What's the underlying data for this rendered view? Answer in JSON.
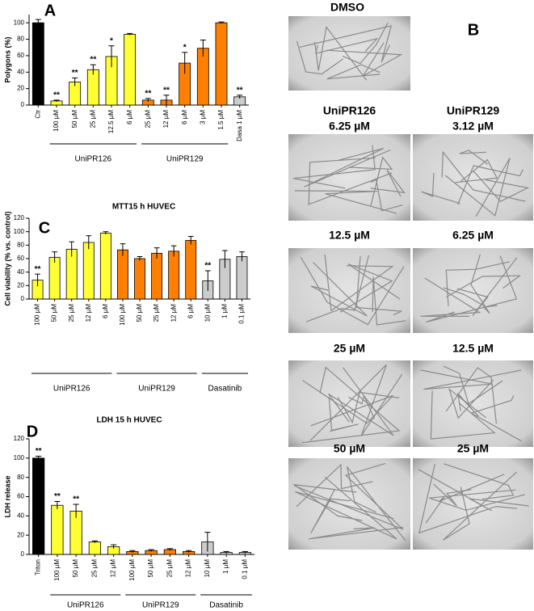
{
  "chart_data": [
    {
      "type": "bar",
      "panel": "A",
      "ylabel": "Polygons (%)",
      "categories": [
        "Ctr",
        "100 µM",
        "50 µM",
        "25 µM",
        "12.5 µM",
        "6 µM",
        "25 µM",
        "12 µM",
        "6 µM",
        "3 µM",
        "1.5 µM",
        "Dasa 1 µM"
      ],
      "group": [
        null,
        "UniPR126",
        "UniPR126",
        "UniPR126",
        "UniPR126",
        "UniPR126",
        "UniPR129",
        "UniPR129",
        "UniPR129",
        "UniPR129",
        "UniPR129",
        null
      ],
      "values": [
        100,
        5,
        28,
        43,
        59,
        86,
        6,
        6,
        51,
        69,
        100,
        10
      ],
      "errors": [
        4,
        1,
        5,
        6,
        13,
        1,
        2,
        6,
        13,
        10,
        1,
        2
      ],
      "significance": [
        null,
        "**",
        "**",
        "**",
        "*",
        null,
        "**",
        "**",
        "*",
        null,
        null,
        "**"
      ],
      "colors": [
        "#000000",
        "#ffff33",
        "#ffff33",
        "#ffff33",
        "#ffff33",
        "#ffff33",
        "#ff8000",
        "#ff8000",
        "#ff8000",
        "#ff8000",
        "#ff8000",
        "#cccccc"
      ],
      "ylim": [
        0,
        110
      ],
      "yticks": [
        0,
        20,
        40,
        60,
        80,
        100
      ],
      "grid": false
    },
    {
      "type": "bar",
      "panel": "C",
      "title": "MTT15 h HUVEC",
      "ylabel": "Cell viability (% vs. control)",
      "categories": [
        "100 µM",
        "50 µM",
        "25 µM",
        "12 µM",
        "6 µM",
        "100 µM",
        "50 µM",
        "25 µM",
        "12 µM",
        "6 µM",
        "10 µM",
        "1 µM",
        "0.1 µM"
      ],
      "group": [
        "UniPR126",
        "UniPR126",
        "UniPR126",
        "UniPR126",
        "UniPR126",
        "UniPR129",
        "UniPR129",
        "UniPR129",
        "UniPR129",
        "UniPR129",
        "Dasatinib",
        "Dasatinib",
        "Dasatinib"
      ],
      "values": [
        28,
        62,
        74,
        84,
        98,
        73,
        60,
        68,
        71,
        87,
        27,
        59,
        63
      ],
      "errors": [
        9,
        8,
        11,
        10,
        2,
        9,
        3,
        8,
        8,
        6,
        15,
        13,
        7
      ],
      "significance": [
        "**",
        null,
        null,
        null,
        null,
        null,
        null,
        null,
        null,
        null,
        "**",
        null,
        null
      ],
      "colors": [
        "#ffff33",
        "#ffff33",
        "#ffff33",
        "#ffff33",
        "#ffff33",
        "#ff8000",
        "#ff8000",
        "#ff8000",
        "#ff8000",
        "#ff8000",
        "#cccccc",
        "#cccccc",
        "#cccccc"
      ],
      "ylim": [
        0,
        120
      ],
      "yticks": [
        0,
        20,
        40,
        60,
        80,
        100,
        120
      ],
      "grid": false
    },
    {
      "type": "bar",
      "panel": "D",
      "title": "LDH 15 h HUVEC",
      "ylabel": "LDH release",
      "categories": [
        "Triton",
        "100 µM",
        "50 µM",
        "25 µM",
        "12 µM",
        "100 µM",
        "50 µM",
        "25 µM",
        "12 µM",
        "10 µM",
        "1 µM",
        "0.1 µM"
      ],
      "group": [
        null,
        "UniPR126",
        "UniPR126",
        "UniPR126",
        "UniPR126",
        "UniPR129",
        "UniPR129",
        "UniPR129",
        "UniPR129",
        "Dasatinib",
        "Dasatinib",
        "Dasatinib"
      ],
      "values": [
        100,
        51,
        45,
        13,
        8,
        3,
        4,
        5,
        3,
        13,
        2,
        2
      ],
      "errors": [
        2,
        4,
        7,
        1,
        2,
        1,
        1,
        1,
        1,
        10,
        1,
        1
      ],
      "significance": [
        "**",
        "**",
        "**",
        null,
        null,
        null,
        null,
        null,
        null,
        null,
        null,
        null
      ],
      "colors": [
        "#000000",
        "#ffff33",
        "#ffff33",
        "#ffff33",
        "#ffff33",
        "#ff8000",
        "#ff8000",
        "#ff8000",
        "#ff8000",
        "#cccccc",
        "#cccccc",
        "#cccccc"
      ],
      "ylim": [
        0,
        120
      ],
      "yticks": [
        0,
        20,
        40,
        60,
        80,
        100,
        120
      ],
      "grid": false
    }
  ],
  "panel_b": {
    "letter": "B",
    "control": "DMSO",
    "columns": [
      {
        "title": "UniPR126",
        "doses": [
          "6.25 µM",
          "12.5 µM",
          "25 µM",
          "50 µM"
        ]
      },
      {
        "title": "UniPR129",
        "doses": [
          "3.12 µM",
          "6.25 µM",
          "12.5 µM",
          "25 µM"
        ]
      }
    ]
  }
}
